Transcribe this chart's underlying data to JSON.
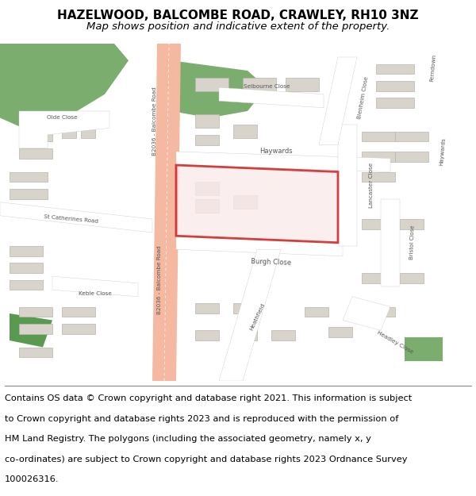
{
  "title_line1": "HAZELWOOD, BALCOMBE ROAD, CRAWLEY, RH10 3NZ",
  "title_line2": "Map shows position and indicative extent of the property.",
  "footer_lines": [
    "Contains OS data © Crown copyright and database right 2021. This information is subject",
    "to Crown copyright and database rights 2023 and is reproduced with the permission of",
    "HM Land Registry. The polygons (including the associated geometry, namely x, y",
    "co-ordinates) are subject to Crown copyright and database rights 2023 Ordnance Survey",
    "100026316."
  ],
  "title_fontsize": 11,
  "subtitle_fontsize": 9.5,
  "footer_fontsize": 8.2,
  "fig_width": 6.0,
  "fig_height": 6.25,
  "map_bg_color": "#f0ede8",
  "road_color_main": "#f5b8a0",
  "building_color": "#d8d4cc",
  "building_edge_color": "#b8b4ac",
  "green_color": "#7aad6e",
  "green_color2": "#5a9a50",
  "highlight_color": "#cc1111",
  "highlight_fill": "#faeaea",
  "road_label_color": "#555555",
  "title_bg_color": "#ffffff",
  "footer_bg_color": "#ffffff"
}
